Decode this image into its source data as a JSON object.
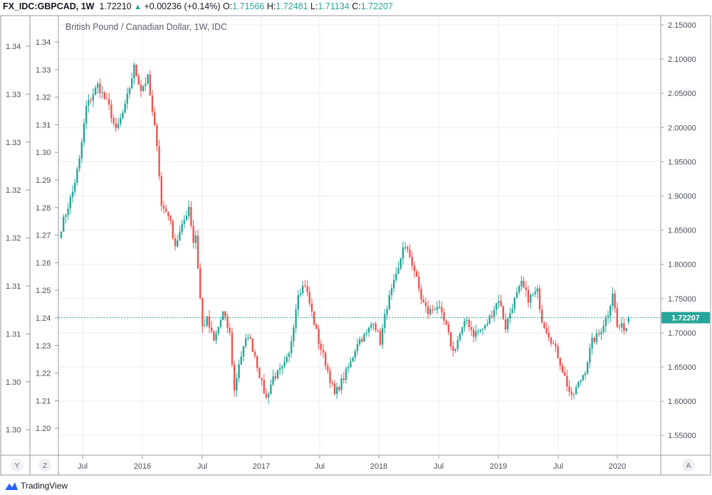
{
  "header": {
    "symbol": "FX_IDC:GBPCAD, 1W",
    "last": "1.72210",
    "change": "+0.00236 (+0.14%)",
    "o_label": "O:",
    "o": "1.71566",
    "h_label": "H:",
    "h": "1.72481",
    "l_label": "L:",
    "l": "1.71134",
    "c_label": "C:",
    "c": "1.72207"
  },
  "axis_buttons": {
    "y": "Y",
    "z": "Z",
    "a": "A"
  },
  "branding": "TradingView",
  "colors": {
    "up": "#26a69a",
    "down": "#ef5350",
    "grid": "#e8eef3",
    "last": "#26a69a"
  },
  "chart_data": {
    "type": "candlestick",
    "title": "British Pound / Canadian Dollar, 1W, IDC",
    "interval": "1W",
    "ylim": [
      1.535,
      2.165
    ],
    "right_ticks": [
      "2.15000",
      "2.10000",
      "2.05000",
      "2.00000",
      "1.95000",
      "1.90000",
      "1.85000",
      "1.80000",
      "1.75000",
      "1.70000",
      "1.65000",
      "1.60000",
      "1.55000"
    ],
    "left_ticks_1": [
      "1.34",
      "1.33",
      "1.33",
      "1.32",
      "1.32",
      "1.31",
      "1.31",
      "1.30",
      "1.30"
    ],
    "left_ticks_2": [
      "1.34",
      "1.33",
      "1.32",
      "1.31",
      "1.30",
      "1.29",
      "1.28",
      "1.27",
      "1.26",
      "1.25",
      "1.24",
      "1.23",
      "1.22",
      "1.21",
      "1.20"
    ],
    "x_ticks": [
      "Jul",
      "2016",
      "Jul",
      "2017",
      "Jul",
      "2018",
      "Jul",
      "2019",
      "Jul",
      "2020"
    ],
    "last_price": "1.72207",
    "last_candle": {
      "open": 1.71566,
      "high": 1.72481,
      "low": 1.71134,
      "close": 1.72207
    },
    "weeks": 250,
    "close_path_week_price": [
      [
        0,
        1.854
      ],
      [
        5,
        1.906
      ],
      [
        8,
        1.952
      ],
      [
        11,
        2.03
      ],
      [
        16,
        2.062
      ],
      [
        21,
        2.03
      ],
      [
        24,
        1.994
      ],
      [
        28,
        2.03
      ],
      [
        32,
        2.088
      ],
      [
        35,
        2.056
      ],
      [
        38,
        2.072
      ],
      [
        40,
        2.02
      ],
      [
        42,
        1.978
      ],
      [
        44,
        1.885
      ],
      [
        47,
        1.874
      ],
      [
        50,
        1.828
      ],
      [
        53,
        1.854
      ],
      [
        56,
        1.885
      ],
      [
        58,
        1.833
      ],
      [
        59,
        1.843
      ],
      [
        61,
        1.75
      ],
      [
        62,
        1.708
      ],
      [
        64,
        1.719
      ],
      [
        67,
        1.687
      ],
      [
        71,
        1.729
      ],
      [
        74,
        1.698
      ],
      [
        76,
        1.615
      ],
      [
        78,
        1.656
      ],
      [
        82,
        1.698
      ],
      [
        85,
        1.667
      ],
      [
        88,
        1.625
      ],
      [
        90,
        1.604
      ],
      [
        93,
        1.635
      ],
      [
        97,
        1.646
      ],
      [
        100,
        1.667
      ],
      [
        104,
        1.76
      ],
      [
        107,
        1.771
      ],
      [
        110,
        1.729
      ],
      [
        113,
        1.687
      ],
      [
        116,
        1.656
      ],
      [
        120,
        1.609
      ],
      [
        124,
        1.635
      ],
      [
        127,
        1.656
      ],
      [
        130,
        1.687
      ],
      [
        134,
        1.698
      ],
      [
        137,
        1.719
      ],
      [
        140,
        1.687
      ],
      [
        143,
        1.74
      ],
      [
        146,
        1.771
      ],
      [
        148,
        1.791
      ],
      [
        150,
        1.828
      ],
      [
        153,
        1.812
      ],
      [
        155,
        1.791
      ],
      [
        158,
        1.75
      ],
      [
        161,
        1.729
      ],
      [
        165,
        1.74
      ],
      [
        169,
        1.708
      ],
      [
        172,
        1.672
      ],
      [
        175,
        1.698
      ],
      [
        178,
        1.719
      ],
      [
        181,
        1.698
      ],
      [
        186,
        1.708
      ],
      [
        189,
        1.729
      ],
      [
        192,
        1.75
      ],
      [
        195,
        1.708
      ],
      [
        198,
        1.74
      ],
      [
        202,
        1.771
      ],
      [
        205,
        1.75
      ],
      [
        209,
        1.76
      ],
      [
        211,
        1.719
      ],
      [
        214,
        1.698
      ],
      [
        218,
        1.667
      ],
      [
        221,
        1.635
      ],
      [
        224,
        1.604
      ],
      [
        227,
        1.625
      ],
      [
        230,
        1.646
      ],
      [
        233,
        1.687
      ],
      [
        236,
        1.698
      ],
      [
        240,
        1.729
      ],
      [
        242,
        1.76
      ],
      [
        244,
        1.708
      ],
      [
        248,
        1.708
      ],
      [
        249,
        1.716
      ],
      [
        250,
        1.722
      ]
    ]
  }
}
